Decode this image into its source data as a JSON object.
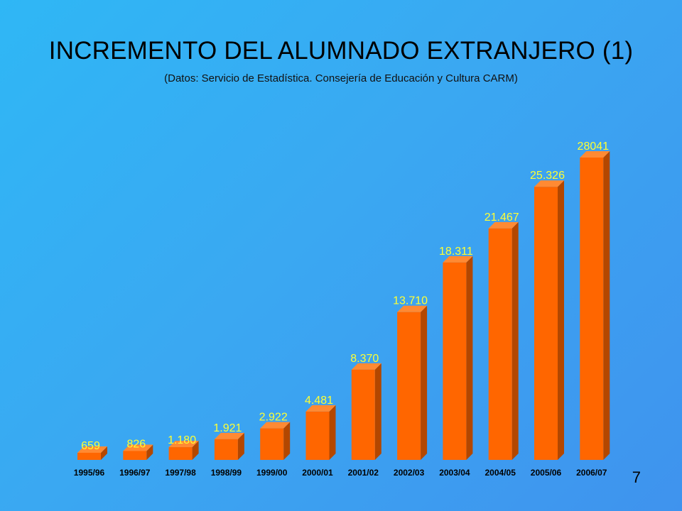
{
  "slide": {
    "title": "INCREMENTO DEL ALUMNADO EXTRANJERO (1)",
    "subtitle": "(Datos: Servicio de Estadística. Consejería de Educación y Cultura CARM)",
    "page_number": "7"
  },
  "colors": {
    "bar_front": "#ff6600",
    "bar_side": "#b34700",
    "bar_top": "#ff8a33",
    "value_labels": "#ffff33"
  },
  "chart_data": {
    "type": "bar",
    "title": "",
    "xlabel": "",
    "ylabel": "",
    "categories": [
      "1995/96",
      "1996/97",
      "1997/98",
      "1998/99",
      "1999/00",
      "2000/01",
      "2001/02",
      "2002/03",
      "2003/04",
      "2004/05",
      "2005/06",
      "2006/07"
    ],
    "values": [
      659,
      826,
      1180,
      1921,
      2922,
      4481,
      8370,
      13710,
      18311,
      21467,
      25326,
      28041
    ],
    "value_labels": [
      "659",
      "826",
      "1.180",
      "1.921",
      "2.922",
      "4.481",
      "8.370",
      "13.710",
      "18.311",
      "21.467",
      "25.326",
      "28041"
    ],
    "ylim": [
      0,
      30000
    ],
    "grid": false,
    "legend": "none"
  }
}
